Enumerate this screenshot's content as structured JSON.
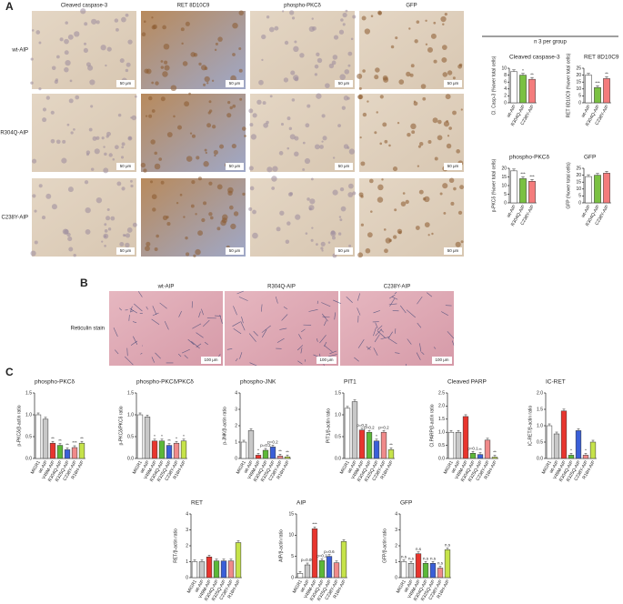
{
  "panel_labels": [
    "A",
    "B",
    "C"
  ],
  "panel_a": {
    "columns": [
      "Cleaved caspase-3",
      "RET 8D10C9",
      "phospho-PKCδ",
      "GFP"
    ],
    "rows": [
      "wt-AIP",
      "R304Q-AIP",
      "C238Y-AIP"
    ],
    "scale_bar": "50 μm",
    "group_note": "n 3 per group"
  },
  "panel_b": {
    "columns": [
      "wt-AIP",
      "R304Q-AIP",
      "C238Y-AIP"
    ],
    "row_label": "Reticulin stain",
    "scale_bar": "100 μm"
  },
  "chart_data": [
    {
      "type": "bar",
      "title": "Cleaved caspase-3",
      "y_label": "Cl. Casp-3 (%over total cells)",
      "categories": [
        "wt-AIP",
        "R304Q-AIP",
        "C238Y-AIP"
      ],
      "values": [
        9,
        8,
        6.8
      ],
      "colors": [
        "#ffffff",
        "#7ac142",
        "#f47c7c"
      ],
      "annotations": [
        null,
        "*",
        "**"
      ],
      "ylim": [
        0,
        10
      ],
      "yticks": [
        0,
        2,
        4,
        6,
        8,
        10
      ]
    },
    {
      "type": "bar",
      "title": "RET 8D10C9",
      "y_label": "RET 8D10C9 (%over total cells)",
      "categories": [
        "wt-AIP",
        "R304Q-AIP",
        "C238Y-AIP"
      ],
      "values": [
        20,
        11,
        17.5
      ],
      "colors": [
        "#ffffff",
        "#7ac142",
        "#f47c7c"
      ],
      "annotations": [
        null,
        "***",
        "**"
      ],
      "ylim": [
        0,
        25
      ],
      "yticks": [
        0,
        5,
        10,
        15,
        20,
        25
      ]
    },
    {
      "type": "bar",
      "title": "phospho-PKCδ",
      "y_label": "p-PKCδ (%over total cells)",
      "categories": [
        "wt-AIP",
        "R304Q-AIP",
        "C238Y-AIP"
      ],
      "values": [
        18.5,
        14,
        12.5
      ],
      "colors": [
        "#ffffff",
        "#7ac142",
        "#f47c7c"
      ],
      "annotations": [
        null,
        "***",
        "***"
      ],
      "ylim": [
        0,
        20
      ],
      "yticks": [
        0,
        5,
        10,
        15,
        20
      ]
    },
    {
      "type": "bar",
      "title": "GFP",
      "y_label": "GFP (%over total cells)",
      "categories": [
        "wt-AIP",
        "R304Q-AIP",
        "C238Y-AIP"
      ],
      "values": [
        19,
        20,
        21.5
      ],
      "colors": [
        "#ffffff",
        "#7ac142",
        "#f47c7c"
      ],
      "annotations": [
        null,
        null,
        null
      ],
      "ylim": [
        0,
        25
      ],
      "yticks": [
        0,
        5,
        10,
        15,
        20,
        25
      ]
    },
    {
      "type": "bar",
      "title": "phospho-PKCδ",
      "y_label": "p-PKCδ/β-actin ratio",
      "categories": [
        "MIGR1",
        "wt-AIP",
        "V49M-AIP",
        "R304Q-AIP",
        "R325Q-AIP",
        "C238Y-AIP",
        "R16H-AIP"
      ],
      "values": [
        1.0,
        0.9,
        0.35,
        0.3,
        0.2,
        0.25,
        0.35
      ],
      "colors": [
        "#ffffff",
        "#c8c8c8",
        "#e8352e",
        "#5cb838",
        "#3a5fd8",
        "#f08a8a",
        "#c6e34a"
      ],
      "annotations": [
        null,
        null,
        "**",
        "**",
        "**",
        "***",
        "**"
      ],
      "ylim": [
        0,
        1.5
      ],
      "yticks": [
        {
          "value": 0,
          "label": "0.0"
        },
        0.5,
        {
          "value": 1,
          "label": "1.0"
        },
        1.5
      ]
    },
    {
      "type": "bar",
      "title": "phospho-PKCδ/PKCδ",
      "y_label": "p-PKCδ/PKCδ ratio",
      "categories": [
        "MIGR1",
        "wt-AIP",
        "V49M-AIP",
        "R304Q-AIP",
        "R325Q-AIP",
        "C238Y-AIP",
        "R16H-AIP"
      ],
      "values": [
        1.0,
        0.95,
        0.4,
        0.4,
        0.3,
        0.35,
        0.4
      ],
      "colors": [
        "#ffffff",
        "#c8c8c8",
        "#e8352e",
        "#5cb838",
        "#3a5fd8",
        "#f08a8a",
        "#c6e34a"
      ],
      "annotations": [
        null,
        null,
        "*",
        "*",
        "**",
        "*",
        "*"
      ],
      "ylim": [
        0,
        1.5
      ],
      "yticks": [
        {
          "value": 0,
          "label": "0.0"
        },
        0.5,
        {
          "value": 1,
          "label": "1.0"
        },
        1.5
      ]
    },
    {
      "type": "bar",
      "title": "phospho-JNK",
      "y_label": "p-JNK/β-actin ratio",
      "categories": [
        "MIGR1",
        "wt-AIP",
        "V49M-AIP",
        "R304Q-AIP",
        "R325Q-AIP",
        "C238Y-AIP",
        "R16H-AIP"
      ],
      "values": [
        1,
        1.7,
        0.2,
        0.5,
        0.7,
        0.15,
        0.1
      ],
      "colors": [
        "#ffffff",
        "#c8c8c8",
        "#e8352e",
        "#5cb838",
        "#3a5fd8",
        "#f08a8a",
        "#c6e34a"
      ],
      "annotations": [
        null,
        null,
        "*",
        "p=0.2",
        "p=0.2",
        "**",
        "**"
      ],
      "ylim": [
        0,
        4
      ],
      "yticks": [
        0,
        1,
        2,
        3,
        4
      ]
    },
    {
      "type": "bar",
      "title": "PIT1",
      "y_label": "PIT1/β-actin ratio",
      "categories": [
        "MIGR1",
        "wt-AIP",
        "V49M-AIP",
        "R304Q-AIP",
        "R325Q-AIP",
        "C238Y-AIP",
        "R16H-AIP"
      ],
      "values": [
        1.15,
        1.3,
        0.65,
        0.6,
        0.4,
        0.6,
        0.2
      ],
      "colors": [
        "#ffffff",
        "#c8c8c8",
        "#e8352e",
        "#5cb838",
        "#3a5fd8",
        "#f08a8a",
        "#c6e34a"
      ],
      "annotations": [
        null,
        null,
        "p=0.3",
        "p=0.2",
        "*",
        "p=0.2",
        "**"
      ],
      "ylim": [
        0,
        1.5
      ],
      "yticks": [
        {
          "value": 0,
          "label": "0.0"
        },
        0.5,
        {
          "value": 1,
          "label": "1.0"
        },
        1.5
      ]
    },
    {
      "type": "bar",
      "title": "Cleaved PARP",
      "y_label": "Cl.PARP/β-actin ratio",
      "categories": [
        "MIGR1",
        "wt-AIP",
        "V49M-AIP",
        "R304Q-AIP",
        "R325Q-AIP",
        "C238Y-AIP",
        "R16H-AIP"
      ],
      "values": [
        1,
        1,
        1.6,
        0.2,
        0.15,
        0.7,
        0.05
      ],
      "colors": [
        "#ffffff",
        "#c8c8c8",
        "#e8352e",
        "#5cb838",
        "#3a5fd8",
        "#f08a8a",
        "#c6e34a"
      ],
      "annotations": [
        null,
        null,
        null,
        "p=0.1",
        "**",
        null,
        "**"
      ],
      "ylim": [
        0,
        2.5
      ],
      "yticks": [
        {
          "value": 0,
          "label": "0.0"
        },
        0.5,
        {
          "value": 1,
          "label": "1.0"
        },
        1.5,
        {
          "value": 2,
          "label": "2.0"
        },
        2.5
      ]
    },
    {
      "type": "bar",
      "title": "IC-RET",
      "y_label": "IC-RET/β-actin ratio",
      "categories": [
        "MIGR1",
        "wt-AIP",
        "V49M-AIP",
        "R304Q-AIP",
        "R325Q-AIP",
        "C238Y-AIP",
        "R16H-AIP"
      ],
      "values": [
        1,
        0.75,
        1.45,
        0.1,
        0.85,
        0.1,
        0.5
      ],
      "colors": [
        "#ffffff",
        "#c8c8c8",
        "#e8352e",
        "#5cb838",
        "#3a5fd8",
        "#f08a8a",
        "#c6e34a"
      ],
      "annotations": [
        null,
        null,
        null,
        "*",
        null,
        "*",
        null
      ],
      "ylim": [
        0,
        2
      ],
      "yticks": [
        {
          "value": 0,
          "label": "0.0"
        },
        0.5,
        {
          "value": 1,
          "label": "1.0"
        },
        1.5,
        {
          "value": 2,
          "label": "2.0"
        }
      ]
    },
    {
      "type": "bar",
      "title": "RET",
      "y_label": "RET/β-actin ratio",
      "categories": [
        "MIGR1",
        "wt-AIP",
        "V49M-AIP",
        "R304Q-AIP",
        "R325Q-AIP",
        "C238Y-AIP",
        "R16H-AIP"
      ],
      "values": [
        1,
        1,
        1.3,
        1.05,
        1.05,
        1.05,
        2.2
      ],
      "colors": [
        "#ffffff",
        "#c8c8c8",
        "#e8352e",
        "#5cb838",
        "#3a5fd8",
        "#f08a8a",
        "#c6e34a"
      ],
      "annotations": [
        null,
        null,
        null,
        null,
        null,
        null,
        null
      ],
      "ylim": [
        0,
        4
      ],
      "yticks": [
        0,
        1,
        2,
        3,
        4
      ]
    },
    {
      "type": "bar",
      "title": "AIP",
      "y_label": "AIP/β-actin ratio",
      "categories": [
        "MIGR1",
        "wt-AIP",
        "V49M-AIP",
        "R304Q-AIP",
        "R325Q-AIP",
        "C238Y-AIP",
        "R16H-AIP"
      ],
      "values": [
        1,
        3,
        11.5,
        4,
        5,
        3.5,
        8.5
      ],
      "colors": [
        "#ffffff",
        "#c8c8c8",
        "#e8352e",
        "#5cb838",
        "#3a5fd8",
        "#f08a8a",
        "#c6e34a"
      ],
      "annotations": [
        null,
        "p=0.09",
        "***",
        "p=0.2",
        "p=0.6",
        null,
        null
      ],
      "ylim": [
        0,
        15
      ],
      "yticks": [
        0,
        5,
        10,
        15
      ]
    },
    {
      "type": "bar",
      "title": "GFP",
      "y_label": "GFP/β-actin ratio",
      "categories": [
        "MIGR1",
        "wt-AIP",
        "V49M-AIP",
        "R304Q-AIP",
        "R325Q-AIP",
        "C238Y-AIP",
        "R16H-AIP"
      ],
      "values": [
        1,
        0.9,
        1.5,
        0.9,
        0.9,
        0.6,
        1.75
      ],
      "colors": [
        "#ffffff",
        "#c8c8c8",
        "#e8352e",
        "#5cb838",
        "#3a5fd8",
        "#f08a8a",
        "#c6e34a"
      ],
      "annotations": [
        "n.s",
        "n.s",
        "n.s",
        "n.s",
        "n.s",
        "n.s",
        "n.s"
      ],
      "ylim": [
        0,
        4
      ],
      "yticks": [
        0,
        1,
        2,
        3,
        4
      ]
    }
  ]
}
